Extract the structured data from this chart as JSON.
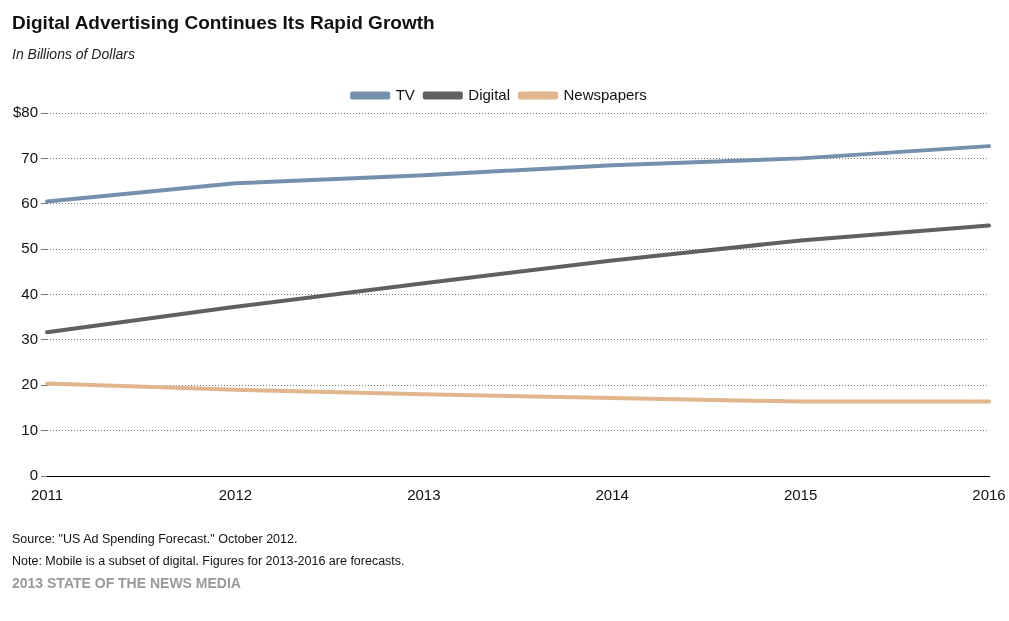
{
  "chart_data": {
    "type": "line",
    "title": "Digital Advertising  Continues Its Rapid Growth",
    "subtitle": "In Billions of Dollars",
    "categories": [
      "2011",
      "2012",
      "2013",
      "2014",
      "2015",
      "2016"
    ],
    "series": [
      {
        "name": "TV",
        "color": "#7590ad",
        "values": [
          60.5,
          64.5,
          66.3,
          68.5,
          70,
          72.7
        ]
      },
      {
        "name": "Digital",
        "color": "#606060",
        "values": [
          31.7,
          37.3,
          42.5,
          47.5,
          51.9,
          55.2
        ]
      },
      {
        "name": "Newspapers",
        "color": "#e2b68c",
        "values": [
          20.4,
          19,
          18,
          17.2,
          16.4,
          16.4
        ]
      }
    ],
    "ylim": [
      0,
      80
    ],
    "yticks": [
      0,
      10,
      20,
      30,
      40,
      50,
      60,
      70,
      {
        "value": 80,
        "label": "$80"
      }
    ],
    "grid": "y",
    "legend": "top",
    "marker": "none",
    "line_style": "solid",
    "annotations": [
      "Source: \"US Ad Spending  Forecast.\" October 2012.",
      "Note: Mobile is a subset of digital. Figures for 2013-2016 are forecasts.",
      "2013 STATE OF THE NEWS MEDIA"
    ]
  }
}
